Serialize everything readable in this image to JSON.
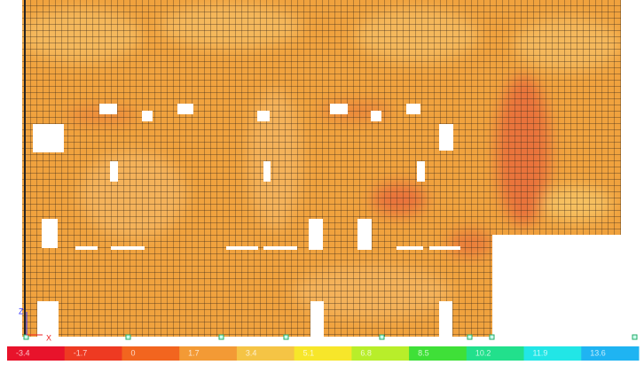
{
  "legend": {
    "labels": [
      "-3.4",
      "-1.7",
      "0",
      "1.7",
      "3.4",
      "5.1",
      "6.8",
      "8.5",
      "10.2",
      "11.9",
      "13.6"
    ],
    "colors": [
      "#e8132b",
      "#ee3a22",
      "#f2651f",
      "#f39a35",
      "#f5c445",
      "#f7e62a",
      "#b8ee2a",
      "#3fe038",
      "#22e08c",
      "#22e6e6",
      "#1fb4f2"
    ]
  },
  "axes": {
    "z": "Z",
    "x": "X"
  }
}
